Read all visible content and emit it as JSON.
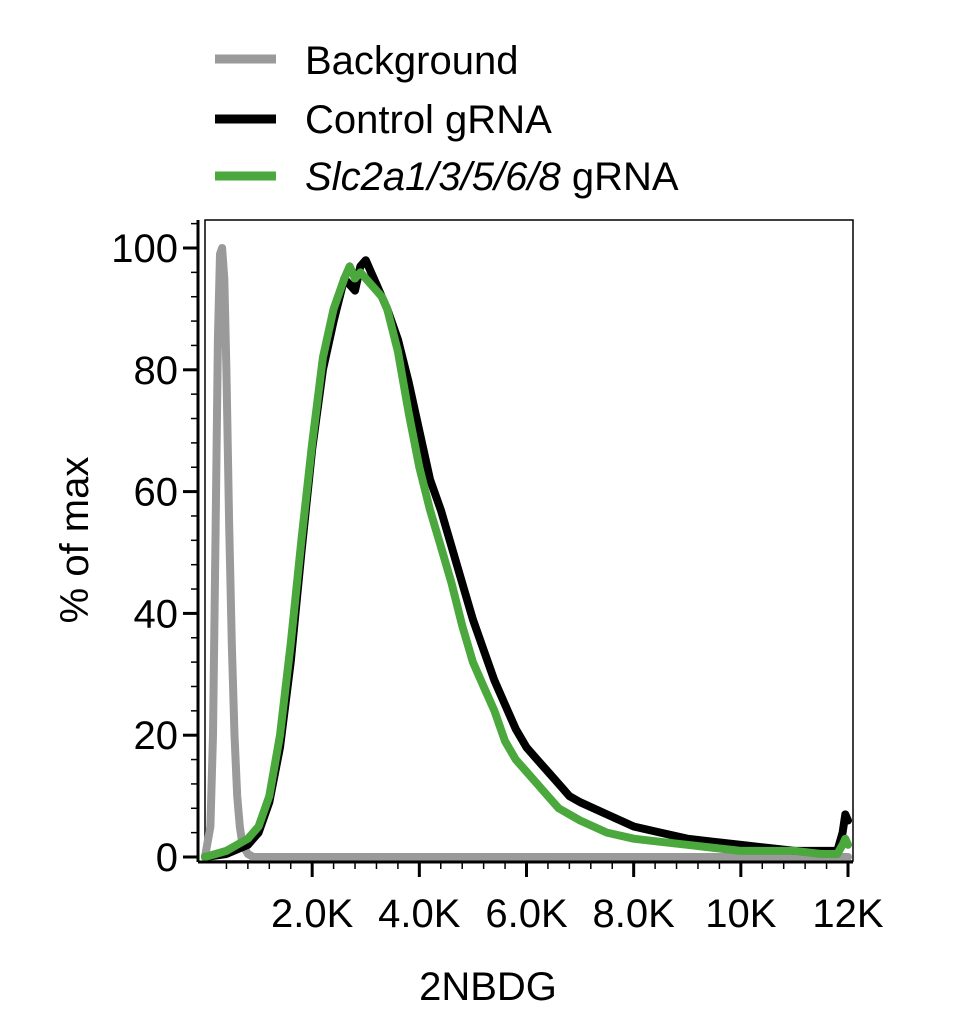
{
  "chart_data": {
    "type": "line",
    "xlabel": "2NBDG",
    "ylabel": "% of max",
    "xlim": [
      0,
      12000
    ],
    "ylim": [
      0,
      100
    ],
    "x_ticks": [
      {
        "value": 2000,
        "label": "2.0K"
      },
      {
        "value": 4000,
        "label": "4.0K"
      },
      {
        "value": 6000,
        "label": "6.0K"
      },
      {
        "value": 8000,
        "label": "8.0K"
      },
      {
        "value": 10000,
        "label": "10K"
      },
      {
        "value": 12000,
        "label": "12K"
      }
    ],
    "y_ticks": [
      {
        "value": 0,
        "label": "0"
      },
      {
        "value": 20,
        "label": "20"
      },
      {
        "value": 40,
        "label": "40"
      },
      {
        "value": 60,
        "label": "60"
      },
      {
        "value": 80,
        "label": "80"
      },
      {
        "value": 100,
        "label": "100"
      }
    ],
    "grid": false,
    "legend_position": "top",
    "legend": [
      {
        "series": "background",
        "label_italic": "",
        "label": "Background"
      },
      {
        "series": "control",
        "label_italic": "",
        "label": "Control gRNA"
      },
      {
        "series": "knockout",
        "label_italic": "Slc2a1/3/5/6/8",
        "label": " gRNA"
      }
    ],
    "series": [
      {
        "name": "Background",
        "color": "#9a9a9a",
        "x": [
          0,
          100,
          150,
          200,
          240,
          280,
          320,
          360,
          400,
          450,
          500,
          550,
          600,
          650,
          700,
          800,
          900,
          1000,
          12000
        ],
        "y": [
          0,
          5,
          20,
          55,
          85,
          99,
          100,
          95,
          80,
          55,
          35,
          20,
          10,
          5,
          2,
          0.5,
          0,
          0,
          0
        ]
      },
      {
        "name": "Control gRNA",
        "color": "#000000",
        "x": [
          0,
          400,
          800,
          1000,
          1200,
          1400,
          1600,
          1800,
          2000,
          2200,
          2400,
          2600,
          2800,
          2900,
          3000,
          3100,
          3200,
          3300,
          3400,
          3600,
          3800,
          4000,
          4200,
          4400,
          4600,
          4800,
          5000,
          5200,
          5400,
          5600,
          5800,
          6000,
          6200,
          6400,
          6600,
          6800,
          7000,
          7500,
          8000,
          8500,
          9000,
          9500,
          10000,
          10500,
          11000,
          11500,
          11800,
          11900,
          11950,
          12000
        ],
        "y": [
          0,
          0.5,
          2,
          4,
          9,
          18,
          32,
          50,
          67,
          80,
          88,
          95,
          93,
          97,
          98,
          96,
          94,
          92,
          90,
          85,
          78,
          70,
          62,
          57,
          51,
          45,
          39,
          34,
          29,
          25,
          21,
          18,
          16,
          14,
          12,
          10,
          9,
          7,
          5,
          4,
          3,
          2.5,
          2,
          1.5,
          1,
          1,
          1,
          4,
          7,
          6
        ]
      },
      {
        "name": "Slc2a1/3/5/6/8 gRNA",
        "color": "#4aa83c",
        "x": [
          0,
          400,
          800,
          1000,
          1200,
          1400,
          1600,
          1800,
          2000,
          2200,
          2400,
          2600,
          2700,
          2800,
          2900,
          3000,
          3100,
          3200,
          3300,
          3400,
          3600,
          3800,
          4000,
          4200,
          4400,
          4600,
          4800,
          5000,
          5200,
          5400,
          5600,
          5800,
          6000,
          6200,
          6400,
          6600,
          6800,
          7000,
          7500,
          8000,
          8500,
          9000,
          9500,
          10000,
          10500,
          11000,
          11500,
          11800,
          11900,
          11950,
          12000
        ],
        "y": [
          0,
          1,
          3,
          5,
          10,
          20,
          35,
          52,
          68,
          82,
          90,
          95,
          97,
          95,
          96,
          95,
          94,
          93,
          92,
          90,
          83,
          73,
          64,
          57,
          51,
          45,
          38,
          32,
          28,
          24,
          19,
          16,
          14,
          12,
          10,
          8,
          7,
          6,
          4,
          3,
          2.5,
          2,
          1.5,
          1,
          1,
          1,
          0.5,
          0.5,
          2,
          3,
          2
        ]
      }
    ]
  }
}
